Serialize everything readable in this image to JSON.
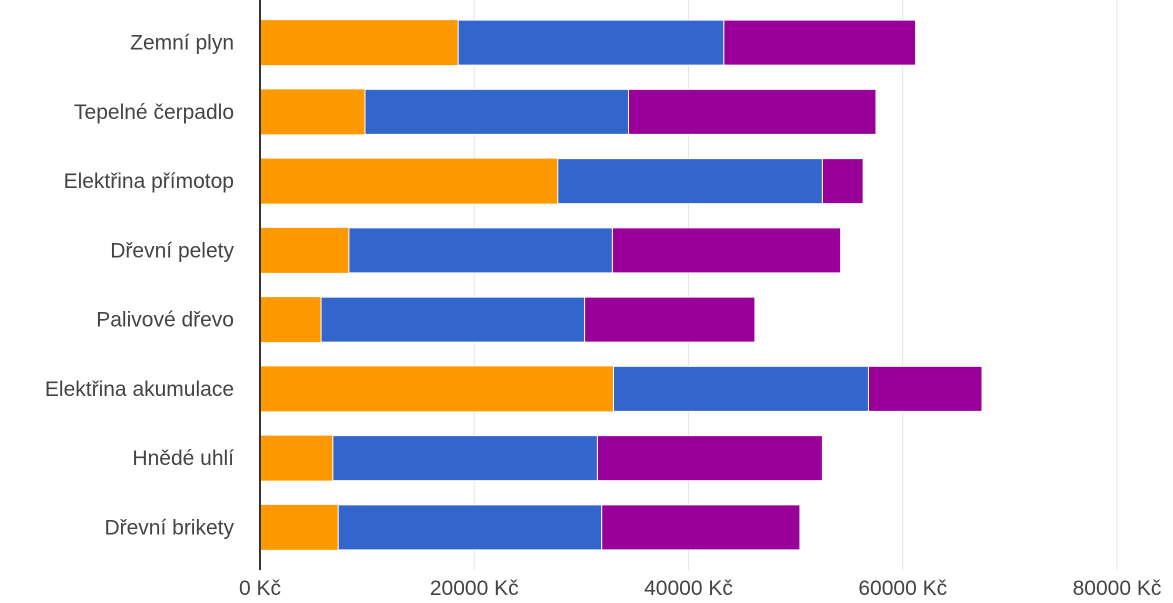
{
  "chart_data": {
    "type": "bar",
    "orientation": "horizontal",
    "stacked": true,
    "title": "",
    "xlabel": "",
    "ylabel": "",
    "xlim": [
      0,
      85000
    ],
    "x_ticks": [
      0,
      20000,
      40000,
      60000,
      80000
    ],
    "tick_labels": [
      "0 Kč",
      "20000 Kč",
      "40000 Kč",
      "60000 Kč",
      "80000 Kč"
    ],
    "grid": true,
    "legend": "none",
    "categories": [
      "Zemní plyn",
      "Tepelné čerpadlo",
      "Elektřina přímotop",
      "Dřevní pelety",
      "Palivové dřevo",
      "Elektřina akumulace",
      "Hnědé uhlí",
      "Dřevní brikety"
    ],
    "series": [
      {
        "color": "#ff9900",
        "values": [
          18500,
          9800,
          27800,
          8300,
          5700,
          33000,
          6800,
          7300
        ]
      },
      {
        "color": "#3366cc",
        "values": [
          24800,
          24600,
          24700,
          24600,
          24600,
          23800,
          24700,
          24600
        ]
      },
      {
        "color": "#990099",
        "values": [
          17900,
          23100,
          3800,
          21300,
          15900,
          10600,
          21000,
          18500
        ]
      }
    ]
  }
}
